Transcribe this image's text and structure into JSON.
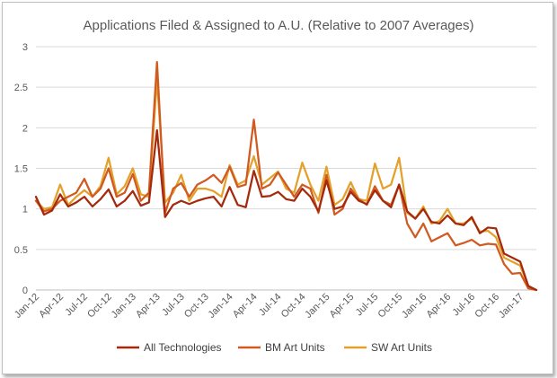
{
  "chart_data": {
    "type": "line",
    "title": "Applications Filed & Assigned to A.U. (Relative to 2007 Averages)",
    "xlabel": "",
    "ylabel": "",
    "ylim": [
      0,
      3
    ],
    "yticks": [
      0,
      0.5,
      1,
      1.5,
      2,
      2.5,
      3
    ],
    "ytick_labels": [
      "0",
      "0.5",
      "1",
      "1.5",
      "2",
      "2.5",
      "3"
    ],
    "grid": "horizontal",
    "legend_position": "bottom",
    "x_tick_labels": [
      "Jan-12",
      "Apr-12",
      "Jul-12",
      "Oct-12",
      "Jan-13",
      "Apr-13",
      "Jul-13",
      "Oct-13",
      "Jan-14",
      "Apr-14",
      "Jul-14",
      "Oct-14",
      "Jan-15",
      "Apr-15",
      "Jul-15",
      "Oct-15",
      "Jan-16",
      "Apr-16",
      "Jul-16",
      "Oct-16",
      "Jan-17"
    ],
    "x_start": "2012-01",
    "x_end": "2017-02",
    "series": [
      {
        "name": "All Technologies",
        "color": "#a5290c",
        "values": [
          1.15,
          0.93,
          0.98,
          1.18,
          1.03,
          1.08,
          1.15,
          1.03,
          1.12,
          1.24,
          1.03,
          1.1,
          1.22,
          1.04,
          1.08,
          1.97,
          0.9,
          1.05,
          1.1,
          1.06,
          1.1,
          1.13,
          1.15,
          1.03,
          1.27,
          1.05,
          1.02,
          1.47,
          1.15,
          1.16,
          1.21,
          1.12,
          1.1,
          1.25,
          1.15,
          0.97,
          1.35,
          1.0,
          1.03,
          1.21,
          1.1,
          1.06,
          1.23,
          1.1,
          1.02,
          1.3,
          0.97,
          0.88,
          1.0,
          0.84,
          0.82,
          0.92,
          0.82,
          0.8,
          0.9,
          0.7,
          0.77,
          0.76,
          0.45,
          0.4,
          0.35,
          0.05,
          0.0
        ]
      },
      {
        "name": "BM Art Units",
        "color": "#d05a20",
        "values": [
          1.1,
          0.97,
          1.0,
          1.1,
          1.15,
          1.2,
          1.37,
          1.15,
          1.25,
          1.5,
          1.15,
          1.2,
          1.43,
          1.1,
          1.2,
          2.81,
          0.95,
          1.25,
          1.32,
          1.15,
          1.3,
          1.35,
          1.42,
          1.32,
          1.52,
          1.27,
          1.3,
          2.1,
          1.25,
          1.3,
          1.45,
          1.3,
          1.15,
          1.3,
          1.25,
          0.95,
          1.42,
          0.93,
          1.0,
          1.25,
          1.12,
          1.05,
          1.28,
          1.1,
          1.05,
          1.3,
          0.82,
          0.65,
          0.82,
          0.6,
          0.65,
          0.7,
          0.55,
          0.58,
          0.62,
          0.55,
          0.57,
          0.56,
          0.32,
          0.2,
          0.21,
          0.02,
          0.0
        ]
      },
      {
        "name": "SW Art Units",
        "color": "#e3a12b",
        "values": [
          1.1,
          1.0,
          1.02,
          1.3,
          1.05,
          1.15,
          1.23,
          1.15,
          1.28,
          1.63,
          1.18,
          1.28,
          1.5,
          1.18,
          1.15,
          2.6,
          1.08,
          1.2,
          1.42,
          1.1,
          1.25,
          1.25,
          1.22,
          1.15,
          1.54,
          1.3,
          1.35,
          1.65,
          1.3,
          1.38,
          1.46,
          1.25,
          1.2,
          1.57,
          1.3,
          1.1,
          1.52,
          1.05,
          1.12,
          1.33,
          1.12,
          1.1,
          1.56,
          1.25,
          1.3,
          1.63,
          0.95,
          0.88,
          1.03,
          0.82,
          0.85,
          1.0,
          0.82,
          0.82,
          0.88,
          0.72,
          0.73,
          0.65,
          0.4,
          0.35,
          0.3,
          0.05,
          0.0
        ]
      }
    ]
  }
}
